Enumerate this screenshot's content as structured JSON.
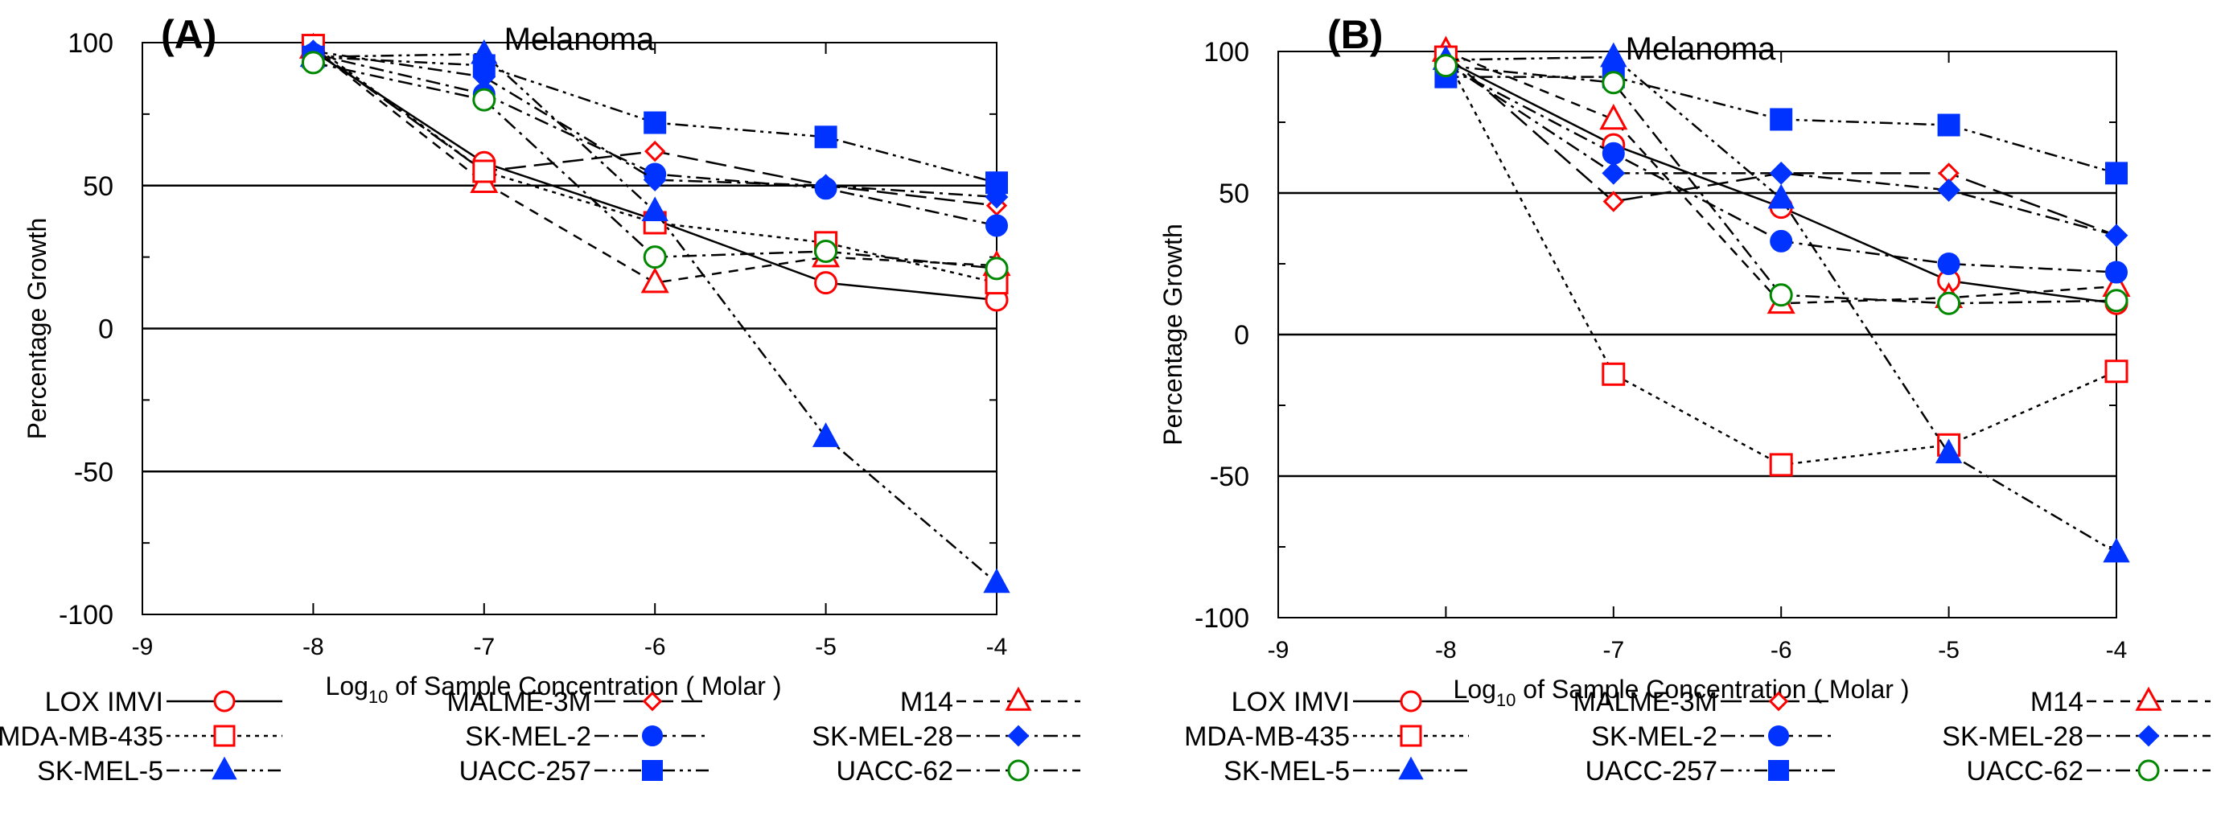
{
  "chart_data": [
    {
      "panel_label": "(A)",
      "type": "line",
      "title": "Melanoma",
      "xlabel_pre": "Log",
      "xlabel_sub": "10",
      "xlabel_post": " of Sample Concentration ( Molar )",
      "ylabel": "Percentage Growth",
      "xlim": [
        -9,
        -4
      ],
      "ylim": [
        -100,
        100
      ],
      "x_ticks": [
        -9,
        -8,
        -7,
        -6,
        -5,
        -4
      ],
      "x_tick_labels": [
        "-9",
        "-8",
        "-7",
        "-6",
        "-5",
        "-4"
      ],
      "y_ticks": [
        -100,
        -50,
        0,
        50,
        100
      ],
      "y_tick_labels": [
        "-100",
        "-50",
        "0",
        "50",
        "100"
      ],
      "minor_y_ticks": [
        -75,
        -25,
        25,
        75
      ],
      "ref_lines": [
        50,
        0,
        -50
      ],
      "x": [
        -8,
        -7,
        -6,
        -5,
        -4
      ],
      "series": [
        {
          "name": "LOX IMVI",
          "values": [
            97,
            58,
            38,
            16,
            10
          ],
          "color": "#ff0000",
          "marker": "circle-open",
          "dash": "solid"
        },
        {
          "name": "MALME-3M",
          "values": [
            98,
            55,
            62,
            50,
            43
          ],
          "color": "#ff0000",
          "marker": "diamond-open",
          "dash": "longdash"
        },
        {
          "name": "M14",
          "values": [
            98,
            51,
            16,
            25,
            22
          ],
          "color": "#ff0000",
          "marker": "triangle-open",
          "dash": "dash"
        },
        {
          "name": "MDA-MB-435",
          "values": [
            99,
            55,
            37,
            30,
            16
          ],
          "color": "#ff0000",
          "marker": "square-open",
          "dash": "dot"
        },
        {
          "name": "SK-MEL-2",
          "values": [
            96,
            82,
            54,
            49,
            36
          ],
          "color": "#0033ff",
          "marker": "circle-filled",
          "dash": "dashdot"
        },
        {
          "name": "SK-MEL-28",
          "values": [
            97,
            88,
            52,
            50,
            46
          ],
          "color": "#0033ff",
          "marker": "diamond-filled",
          "dash": "dashdot"
        },
        {
          "name": "SK-MEL-5",
          "values": [
            95,
            96,
            41,
            -38,
            -89
          ],
          "color": "#0033ff",
          "marker": "triangle-filled",
          "dash": "dashdotdot"
        },
        {
          "name": "UACC-257",
          "values": [
            95,
            92,
            72,
            67,
            51
          ],
          "color": "#0033ff",
          "marker": "square-filled",
          "dash": "dashdotdot"
        },
        {
          "name": "UACC-62",
          "values": [
            93,
            80,
            25,
            27,
            21
          ],
          "color": "#008800",
          "marker": "circle-open",
          "dash": "dashdot"
        }
      ]
    },
    {
      "panel_label": "(B)",
      "type": "line",
      "title": "Melanoma",
      "xlabel_pre": "Log",
      "xlabel_sub": "10",
      "xlabel_post": " of Sample Concentration ( Molar )",
      "ylabel": "Percentage Growth",
      "xlim": [
        -9,
        -4
      ],
      "ylim": [
        -100,
        100
      ],
      "x_ticks": [
        -9,
        -8,
        -7,
        -6,
        -5,
        -4
      ],
      "x_tick_labels": [
        "-9",
        "-8",
        "-7",
        "-6",
        "-5",
        "-4"
      ],
      "y_ticks": [
        -100,
        -50,
        0,
        50,
        100
      ],
      "y_tick_labels": [
        "-100",
        "-50",
        "0",
        "50",
        "100"
      ],
      "minor_y_ticks": [
        -75,
        -25,
        25,
        75
      ],
      "ref_lines": [
        50,
        0,
        -50
      ],
      "x": [
        -8,
        -7,
        -6,
        -5,
        -4
      ],
      "series": [
        {
          "name": "LOX IMVI",
          "values": [
            97,
            67,
            45,
            19,
            11
          ],
          "color": "#ff0000",
          "marker": "circle-open",
          "dash": "solid"
        },
        {
          "name": "MALME-3M",
          "values": [
            99,
            47,
            57,
            57,
            35
          ],
          "color": "#ff0000",
          "marker": "diamond-open",
          "dash": "longdash"
        },
        {
          "name": "M14",
          "values": [
            100,
            76,
            11,
            13,
            17
          ],
          "color": "#ff0000",
          "marker": "triangle-open",
          "dash": "dash"
        },
        {
          "name": "MDA-MB-435",
          "values": [
            98,
            -14,
            -46,
            -39,
            -13
          ],
          "color": "#ff0000",
          "marker": "square-open",
          "dash": "dot"
        },
        {
          "name": "SK-MEL-2",
          "values": [
            95,
            64,
            33,
            25,
            22
          ],
          "color": "#0033ff",
          "marker": "circle-filled",
          "dash": "dashdot"
        },
        {
          "name": "SK-MEL-28",
          "values": [
            96,
            57,
            57,
            51,
            35
          ],
          "color": "#0033ff",
          "marker": "diamond-filled",
          "dash": "dashdot"
        },
        {
          "name": "SK-MEL-5",
          "values": [
            97,
            98,
            48,
            -42,
            -77
          ],
          "color": "#0033ff",
          "marker": "triangle-filled",
          "dash": "dashdotdot"
        },
        {
          "name": "UACC-257",
          "values": [
            91,
            91,
            76,
            74,
            57
          ],
          "color": "#0033ff",
          "marker": "square-filled",
          "dash": "dashdotdot"
        },
        {
          "name": "UACC-62",
          "values": [
            95,
            89,
            14,
            11,
            12
          ],
          "color": "#008800",
          "marker": "circle-open",
          "dash": "dashdot"
        }
      ]
    }
  ],
  "legend": {
    "placement": "bottom",
    "rows": [
      [
        "LOX IMVI",
        "MALME-3M",
        "M14"
      ],
      [
        "MDA-MB-435",
        "SK-MEL-2",
        "SK-MEL-28"
      ],
      [
        "SK-MEL-5",
        "UACC-257",
        "UACC-62"
      ]
    ]
  }
}
